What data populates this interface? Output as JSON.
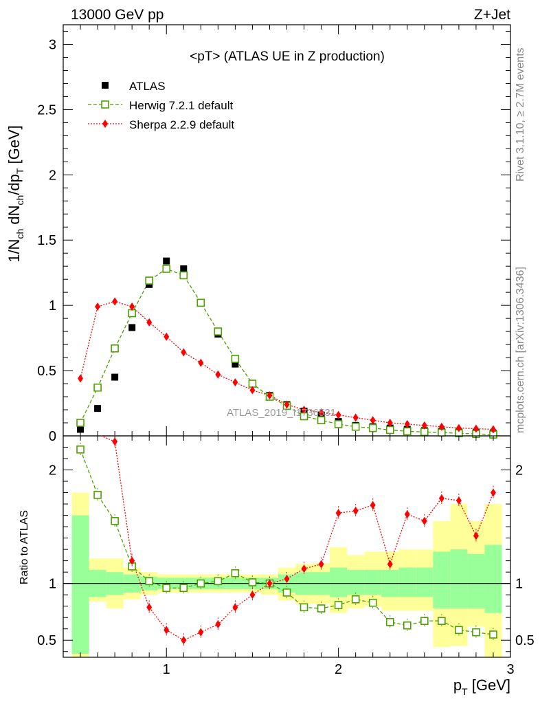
{
  "header": {
    "left": "13000 GeV pp",
    "right": "Z+Jet"
  },
  "side_labels": {
    "rivet": "Rivet 3.1.10, ≥ 2.7M events",
    "mcplots": "mcplots.cern.ch [arXiv:1306.3436]"
  },
  "plot_title": "<pT> (ATLAS UE in Z production)",
  "watermark": "ATLAS_2019_I1736531",
  "axes": {
    "ylabel_main": "1/N_ch dN_ch/dp_T [GeV]",
    "ylabel_ratio": "Ratio to ATLAS",
    "xlabel": "p_T [GeV]"
  },
  "chart_data": [
    {
      "type": "scatter",
      "panel": "main",
      "xlim": [
        0.4,
        3.0
      ],
      "ylim": [
        0,
        3.15
      ],
      "x_ticks": [
        "1",
        "2",
        "3"
      ],
      "y_ticks": [
        "0",
        "0.5",
        "1",
        "1.5",
        "2",
        "2.5",
        "3"
      ],
      "x": [
        0.5,
        0.6,
        0.7,
        0.8,
        0.9,
        1.0,
        1.1,
        1.2,
        1.3,
        1.4,
        1.5,
        1.6,
        1.7,
        1.8,
        1.9,
        2.0,
        2.1,
        2.2,
        2.3,
        2.4,
        2.5,
        2.6,
        2.7,
        2.8,
        2.9
      ],
      "legend_position": "top-left",
      "series": [
        {
          "name": "ATLAS",
          "color": "#000000",
          "marker": "filled-square",
          "values": [
            0.05,
            0.21,
            0.45,
            0.83,
            1.16,
            1.34,
            1.28,
            1.02,
            0.78,
            0.55,
            0.4,
            0.31,
            0.24,
            0.19,
            0.16,
            0.11,
            0.08,
            0.07,
            0.06,
            0.05,
            0.04,
            0.035,
            0.03,
            0.025,
            0.02
          ]
        },
        {
          "name": "Herwig 7.2.1 default",
          "color": "#4d9f00",
          "marker": "open-square",
          "line": "dashed",
          "values": [
            0.1,
            0.37,
            0.67,
            0.94,
            1.19,
            1.28,
            1.23,
            1.02,
            0.8,
            0.59,
            0.4,
            0.3,
            0.23,
            0.15,
            0.12,
            0.09,
            0.07,
            0.06,
            0.045,
            0.035,
            0.03,
            0.025,
            0.02,
            0.015,
            0.01
          ]
        },
        {
          "name": "Sherpa 2.2.9 default",
          "color": "#ff0000",
          "marker": "diamond",
          "line": "dotted",
          "values": [
            0.44,
            0.99,
            1.03,
            0.99,
            0.87,
            0.76,
            0.64,
            0.56,
            0.47,
            0.41,
            0.35,
            0.31,
            0.24,
            0.2,
            0.18,
            0.16,
            0.14,
            0.12,
            0.1,
            0.09,
            0.08,
            0.07,
            0.06,
            0.055,
            0.05
          ]
        }
      ]
    },
    {
      "type": "scatter",
      "panel": "ratio",
      "xlim": [
        0.4,
        3.0
      ],
      "ylim": [
        0.35,
        2.3
      ],
      "x_ticks": [
        "1",
        "2",
        "3"
      ],
      "y_ticks": [
        "0.5",
        "1",
        "2"
      ],
      "reference_line": 1,
      "x": [
        0.5,
        0.6,
        0.7,
        0.8,
        0.9,
        1.0,
        1.1,
        1.2,
        1.3,
        1.4,
        1.5,
        1.6,
        1.7,
        1.8,
        1.9,
        2.0,
        2.1,
        2.2,
        2.3,
        2.4,
        2.5,
        2.6,
        2.7,
        2.8,
        2.9
      ],
      "bands": {
        "inner_color": "#99ff99",
        "outer_color": "#ffff99",
        "inner_lo": [
          0.38,
          0.88,
          0.9,
          0.92,
          0.94,
          0.95,
          0.95,
          0.95,
          0.95,
          0.95,
          0.95,
          0.95,
          0.92,
          0.9,
          0.9,
          0.88,
          0.9,
          0.9,
          0.88,
          0.88,
          0.88,
          0.78,
          0.78,
          0.78,
          0.74
        ],
        "inner_hi": [
          1.6,
          1.12,
          1.1,
          1.08,
          1.06,
          1.05,
          1.05,
          1.05,
          1.05,
          1.05,
          1.05,
          1.05,
          1.08,
          1.1,
          1.1,
          1.14,
          1.12,
          1.12,
          1.12,
          1.14,
          1.14,
          1.28,
          1.3,
          1.26,
          1.34
        ],
        "outer_lo": [
          0.35,
          0.84,
          0.78,
          0.86,
          0.9,
          0.92,
          0.92,
          0.92,
          0.92,
          0.92,
          0.92,
          0.9,
          0.85,
          0.82,
          0.82,
          0.74,
          0.78,
          0.8,
          0.76,
          0.76,
          0.76,
          0.44,
          0.45,
          0.62,
          0.35
        ],
        "outer_hi": [
          1.8,
          1.22,
          1.22,
          1.14,
          1.1,
          1.08,
          1.08,
          1.08,
          1.08,
          1.08,
          1.08,
          1.08,
          1.14,
          1.17,
          1.18,
          1.32,
          1.25,
          1.28,
          1.28,
          1.3,
          1.3,
          1.55,
          1.7,
          1.55,
          1.7
        ]
      },
      "series": [
        {
          "name": "Herwig 7.2.1 default",
          "color": "#4d9f00",
          "marker": "open-square",
          "line": "dashed",
          "values": [
            2.18,
            1.78,
            1.55,
            1.15,
            1.02,
            0.96,
            0.96,
            1.0,
            1.02,
            1.09,
            1.01,
            1.0,
            0.92,
            0.79,
            0.78,
            0.81,
            0.86,
            0.83,
            0.66,
            0.63,
            0.67,
            0.67,
            0.59,
            0.57,
            0.55
          ]
        },
        {
          "name": "Sherpa 2.2.9 default",
          "color": "#ff0000",
          "marker": "diamond",
          "line": "dotted",
          "values": [
            null,
            null,
            2.25,
            1.2,
            0.79,
            0.59,
            0.5,
            0.57,
            0.64,
            0.79,
            0.9,
            1.0,
            1.04,
            1.13,
            1.17,
            1.62,
            1.64,
            1.69,
            1.17,
            1.61,
            1.55,
            1.75,
            1.73,
            1.42,
            1.8
          ]
        }
      ]
    }
  ]
}
